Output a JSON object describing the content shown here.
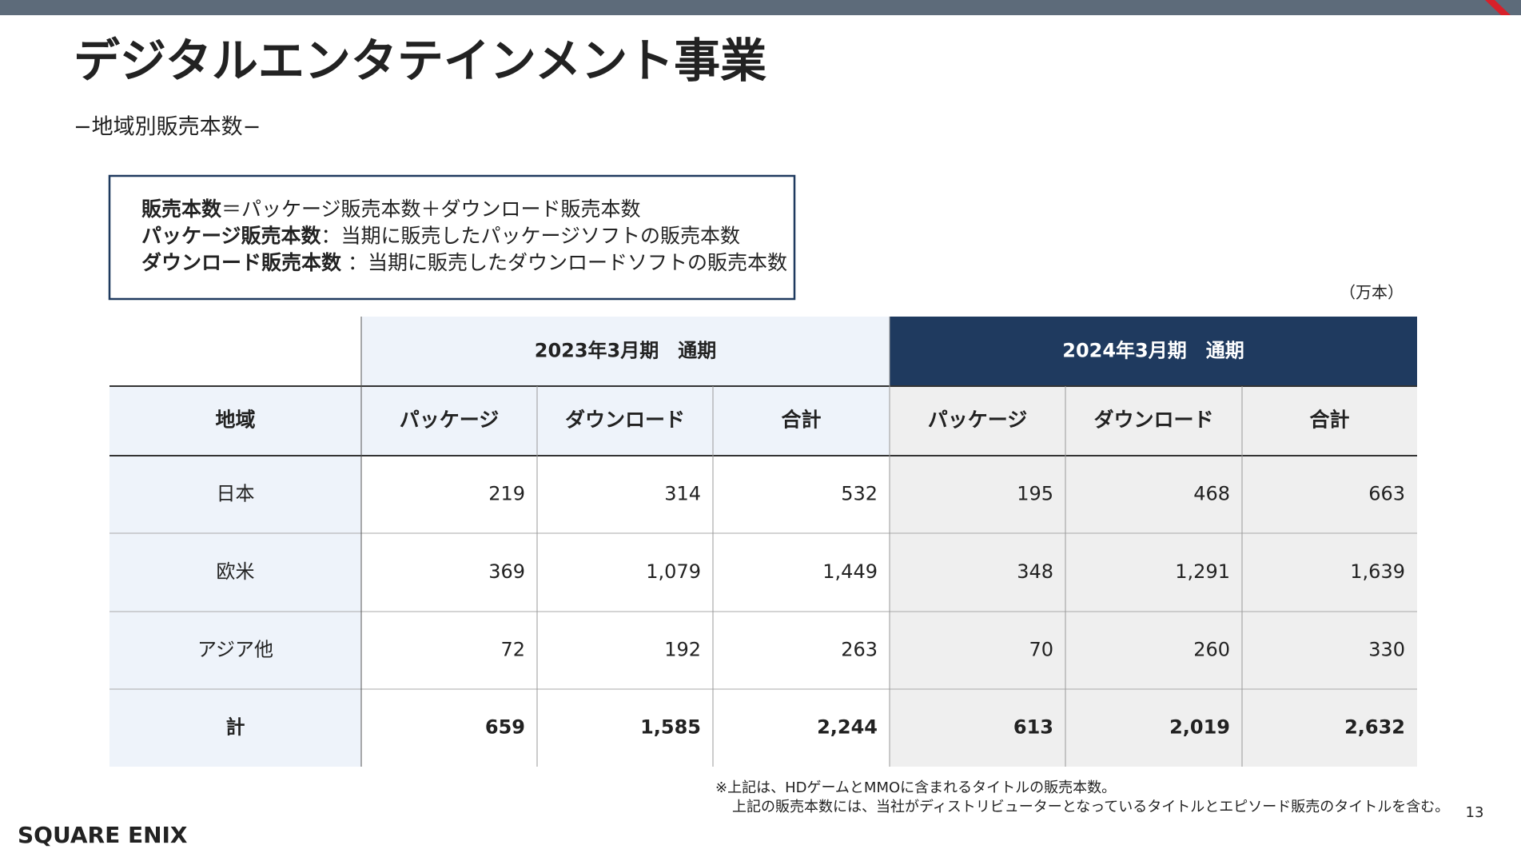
{
  "header": {
    "title": "デジタルエンタテインメント事業",
    "subtitle": "−地域別販売本数−"
  },
  "definition": {
    "lines": [
      {
        "term": "販売本数",
        "text": "＝パッケージ販売本数＋ダウンロード販売本数"
      },
      {
        "term": "パッケージ販売本数",
        "text": "：当期に販売したパッケージソフトの販売本数"
      },
      {
        "term": "ダウンロード販売本数",
        "text": " ：当期に販売したダウンロードソフトの販売本数"
      }
    ]
  },
  "unit": "（万本）",
  "table": {
    "period_headers": [
      "2023年3月期　通期",
      "2024年3月期　通期"
    ],
    "columns": [
      "地域",
      "パッケージ",
      "ダウンロード",
      "合計",
      "パッケージ",
      "ダウンロード",
      "合計"
    ],
    "rows": [
      [
        "日本",
        "219",
        "314",
        "532",
        "195",
        "468",
        "663"
      ],
      [
        "欧米",
        "369",
        "1,079",
        "1,449",
        "348",
        "1,291",
        "1,639"
      ],
      [
        "アジア他",
        "72",
        "192",
        "263",
        "70",
        "260",
        "330"
      ],
      [
        "計",
        "659",
        "1,585",
        "2,244",
        "613",
        "2,019",
        "2,632"
      ]
    ]
  },
  "footnotes": [
    "※上記は、HDゲームとMMOに含まれるタイトルの販売本数。",
    "上記の販売本数には、当社がディストリビューターとなっているタイトルとエピソード販売のタイトルを含む。"
  ],
  "page_number": "13",
  "logo": "SQUARE ENIX"
}
